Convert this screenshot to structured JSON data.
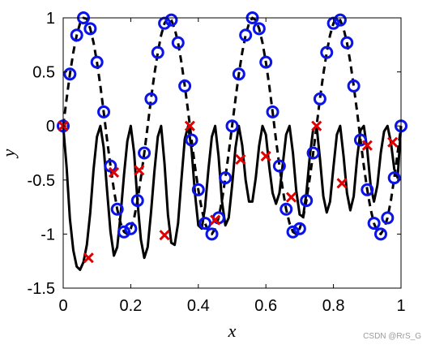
{
  "chart_data": {
    "type": "line",
    "title": "",
    "xlabel": "x",
    "ylabel": "y",
    "xlim": [
      0,
      1
    ],
    "ylim": [
      -1.5,
      1
    ],
    "xticks": [
      "0",
      "0.2",
      "0.4",
      "0.6",
      "0.8",
      "1"
    ],
    "xtick_values": [
      0,
      0.2,
      0.4,
      0.6,
      0.8,
      1
    ],
    "yticks": [
      "-1.5",
      "-1",
      "-0.5",
      "0",
      "0.5",
      "1"
    ],
    "ytick_values": [
      -1.5,
      -1,
      -0.5,
      0,
      0.5,
      1
    ],
    "grid": false,
    "legend": null,
    "series": [
      {
        "style": "solid",
        "color": "#000000",
        "x": [
          0,
          0.01,
          0.02,
          0.03,
          0.04,
          0.05,
          0.06,
          0.07,
          0.08,
          0.09,
          0.1,
          0.11,
          0.12,
          0.13,
          0.14,
          0.15,
          0.16,
          0.17,
          0.18,
          0.19,
          0.2,
          0.21,
          0.22,
          0.23,
          0.24,
          0.25,
          0.26,
          0.27,
          0.28,
          0.29,
          0.3,
          0.31,
          0.32,
          0.33,
          0.34,
          0.35,
          0.36,
          0.37,
          0.38,
          0.39,
          0.4,
          0.41,
          0.42,
          0.43,
          0.44,
          0.45,
          0.46,
          0.47,
          0.48,
          0.49,
          0.5,
          0.51,
          0.52,
          0.53,
          0.54,
          0.55,
          0.56,
          0.57,
          0.58,
          0.59,
          0.6,
          0.61,
          0.62,
          0.63,
          0.64,
          0.65,
          0.66,
          0.67,
          0.68,
          0.69,
          0.7,
          0.71,
          0.72,
          0.73,
          0.74,
          0.75,
          0.76,
          0.77,
          0.78,
          0.79,
          0.8,
          0.81,
          0.82,
          0.83,
          0.84,
          0.85,
          0.86,
          0.87,
          0.88,
          0.89,
          0.9,
          0.91,
          0.92,
          0.93,
          0.94,
          0.95,
          0.96,
          0.97,
          0.98,
          0.99,
          1
        ],
        "y": [
          0,
          -0.38,
          -0.86,
          -1.15,
          -1.3,
          -1.33,
          -1.26,
          -1.1,
          -0.8,
          -0.4,
          -0.1,
          0,
          -0.2,
          -0.6,
          -0.98,
          -1.2,
          -1.12,
          -0.82,
          -0.45,
          -0.14,
          0,
          -0.25,
          -0.7,
          -1.05,
          -1.22,
          -1.12,
          -0.8,
          -0.42,
          -0.1,
          0,
          -0.35,
          -0.82,
          -1.08,
          -1.1,
          -0.9,
          -0.5,
          -0.12,
          0,
          -0.22,
          -0.62,
          -0.92,
          -0.95,
          -0.75,
          -0.4,
          -0.1,
          0,
          -0.28,
          -0.7,
          -0.92,
          -0.85,
          -0.55,
          -0.2,
          0,
          -0.18,
          -0.5,
          -0.7,
          -0.7,
          -0.48,
          -0.18,
          0,
          -0.08,
          -0.38,
          -0.62,
          -0.72,
          -0.62,
          -0.35,
          -0.08,
          0,
          -0.25,
          -0.6,
          -0.82,
          -0.84,
          -0.62,
          -0.28,
          -0.03,
          0,
          -0.3,
          -0.65,
          -0.8,
          -0.7,
          -0.38,
          -0.08,
          0,
          -0.28,
          -0.62,
          -0.78,
          -0.65,
          -0.3,
          -0.04,
          0,
          -0.22,
          -0.55,
          -0.7,
          -0.55,
          -0.25,
          -0.05,
          0,
          -0.15,
          -0.4,
          -0.48,
          0
        ]
      },
      {
        "style": "dashed",
        "color": "#000000",
        "x": [
          0,
          0.01,
          0.02,
          0.03,
          0.04,
          0.05,
          0.06,
          0.07,
          0.08,
          0.09,
          0.1,
          0.11,
          0.12,
          0.13,
          0.14,
          0.15,
          0.16,
          0.17,
          0.18,
          0.19,
          0.2,
          0.21,
          0.22,
          0.23,
          0.24,
          0.25,
          0.26,
          0.27,
          0.28,
          0.29,
          0.3,
          0.31,
          0.32,
          0.33,
          0.34,
          0.35,
          0.36,
          0.37,
          0.38,
          0.39,
          0.4,
          0.41,
          0.42,
          0.43,
          0.44,
          0.45,
          0.46,
          0.47,
          0.48,
          0.49,
          0.5,
          0.51,
          0.52,
          0.53,
          0.54,
          0.55,
          0.56,
          0.57,
          0.58,
          0.59,
          0.6,
          0.61,
          0.62,
          0.63,
          0.64,
          0.65,
          0.66,
          0.67,
          0.68,
          0.69,
          0.7,
          0.71,
          0.72,
          0.73,
          0.74,
          0.75,
          0.76,
          0.77,
          0.78,
          0.79,
          0.8,
          0.81,
          0.82,
          0.83,
          0.84,
          0.85,
          0.86,
          0.87,
          0.88,
          0.89,
          0.9,
          0.91,
          0.92,
          0.93,
          0.94,
          0.95,
          0.96,
          0.97,
          0.98,
          0.99,
          1
        ],
        "y": [
          0,
          0.25,
          0.48,
          0.68,
          0.84,
          0.95,
          1,
          0.99,
          0.9,
          0.77,
          0.59,
          0.37,
          0.13,
          -0.13,
          -0.37,
          -0.59,
          -0.77,
          -0.9,
          -0.98,
          -1,
          -0.95,
          -0.85,
          -0.69,
          -0.48,
          -0.25,
          0,
          0.25,
          0.48,
          0.68,
          0.84,
          0.95,
          1,
          0.98,
          0.9,
          0.77,
          0.59,
          0.37,
          0.13,
          -0.13,
          -0.37,
          -0.59,
          -0.77,
          -0.9,
          -0.98,
          -1,
          -0.95,
          -0.85,
          -0.69,
          -0.48,
          -0.25,
          0,
          0.25,
          0.48,
          0.68,
          0.84,
          0.95,
          1,
          0.98,
          0.9,
          0.77,
          0.59,
          0.37,
          0.13,
          -0.13,
          -0.37,
          -0.59,
          -0.77,
          -0.9,
          -0.98,
          -1,
          -0.95,
          -0.85,
          -0.69,
          -0.48,
          -0.25,
          0,
          0.25,
          0.48,
          0.68,
          0.84,
          0.95,
          1,
          0.98,
          0.9,
          0.77,
          0.59,
          0.37,
          0.13,
          -0.13,
          -0.37,
          -0.59,
          -0.77,
          -0.9,
          -0.98,
          -1,
          -0.95,
          -0.85,
          -0.69,
          -0.48,
          -0.25,
          0
        ]
      }
    ],
    "markers": {
      "circles": {
        "color": "#0a14e8",
        "x": [
          0,
          0.02,
          0.04,
          0.06,
          0.08,
          0.1,
          0.12,
          0.14,
          0.16,
          0.18,
          0.2,
          0.22,
          0.24,
          0.26,
          0.28,
          0.3,
          0.32,
          0.34,
          0.36,
          0.38,
          0.4,
          0.42,
          0.44,
          0.46,
          0.48,
          0.5,
          0.52,
          0.54,
          0.56,
          0.58,
          0.6,
          0.62,
          0.64,
          0.66,
          0.68,
          0.7,
          0.72,
          0.74,
          0.76,
          0.78,
          0.8,
          0.82,
          0.84,
          0.86,
          0.88,
          0.9,
          0.92,
          0.94,
          0.96,
          0.98,
          1
        ],
        "y": [
          0,
          0.48,
          0.84,
          1,
          0.9,
          0.59,
          0.13,
          -0.37,
          -0.77,
          -0.98,
          -0.95,
          -0.69,
          -0.25,
          0.25,
          0.68,
          0.95,
          0.98,
          0.77,
          0.37,
          -0.13,
          -0.59,
          -0.9,
          -1,
          -0.85,
          -0.48,
          0,
          0.48,
          0.84,
          1,
          0.9,
          0.59,
          0.13,
          -0.37,
          -0.77,
          -0.98,
          -0.95,
          -0.69,
          -0.25,
          0.25,
          0.68,
          0.95,
          0.98,
          0.77,
          0.37,
          -0.13,
          -0.59,
          -0.9,
          -1,
          -0.85,
          -0.48,
          0
        ]
      },
      "crosses": {
        "color": "#e00000",
        "x": [
          0,
          0.075,
          0.15,
          0.225,
          0.3,
          0.375,
          0.45,
          0.525,
          0.6,
          0.675,
          0.75,
          0.825,
          0.9,
          0.975
        ],
        "y": [
          0,
          -1.22,
          -0.43,
          -0.41,
          -1.01,
          0,
          -0.87,
          -0.31,
          -0.28,
          -0.66,
          0,
          -0.53,
          -0.18,
          -0.15
        ]
      }
    }
  },
  "watermark": "CSDN @RrS_G"
}
